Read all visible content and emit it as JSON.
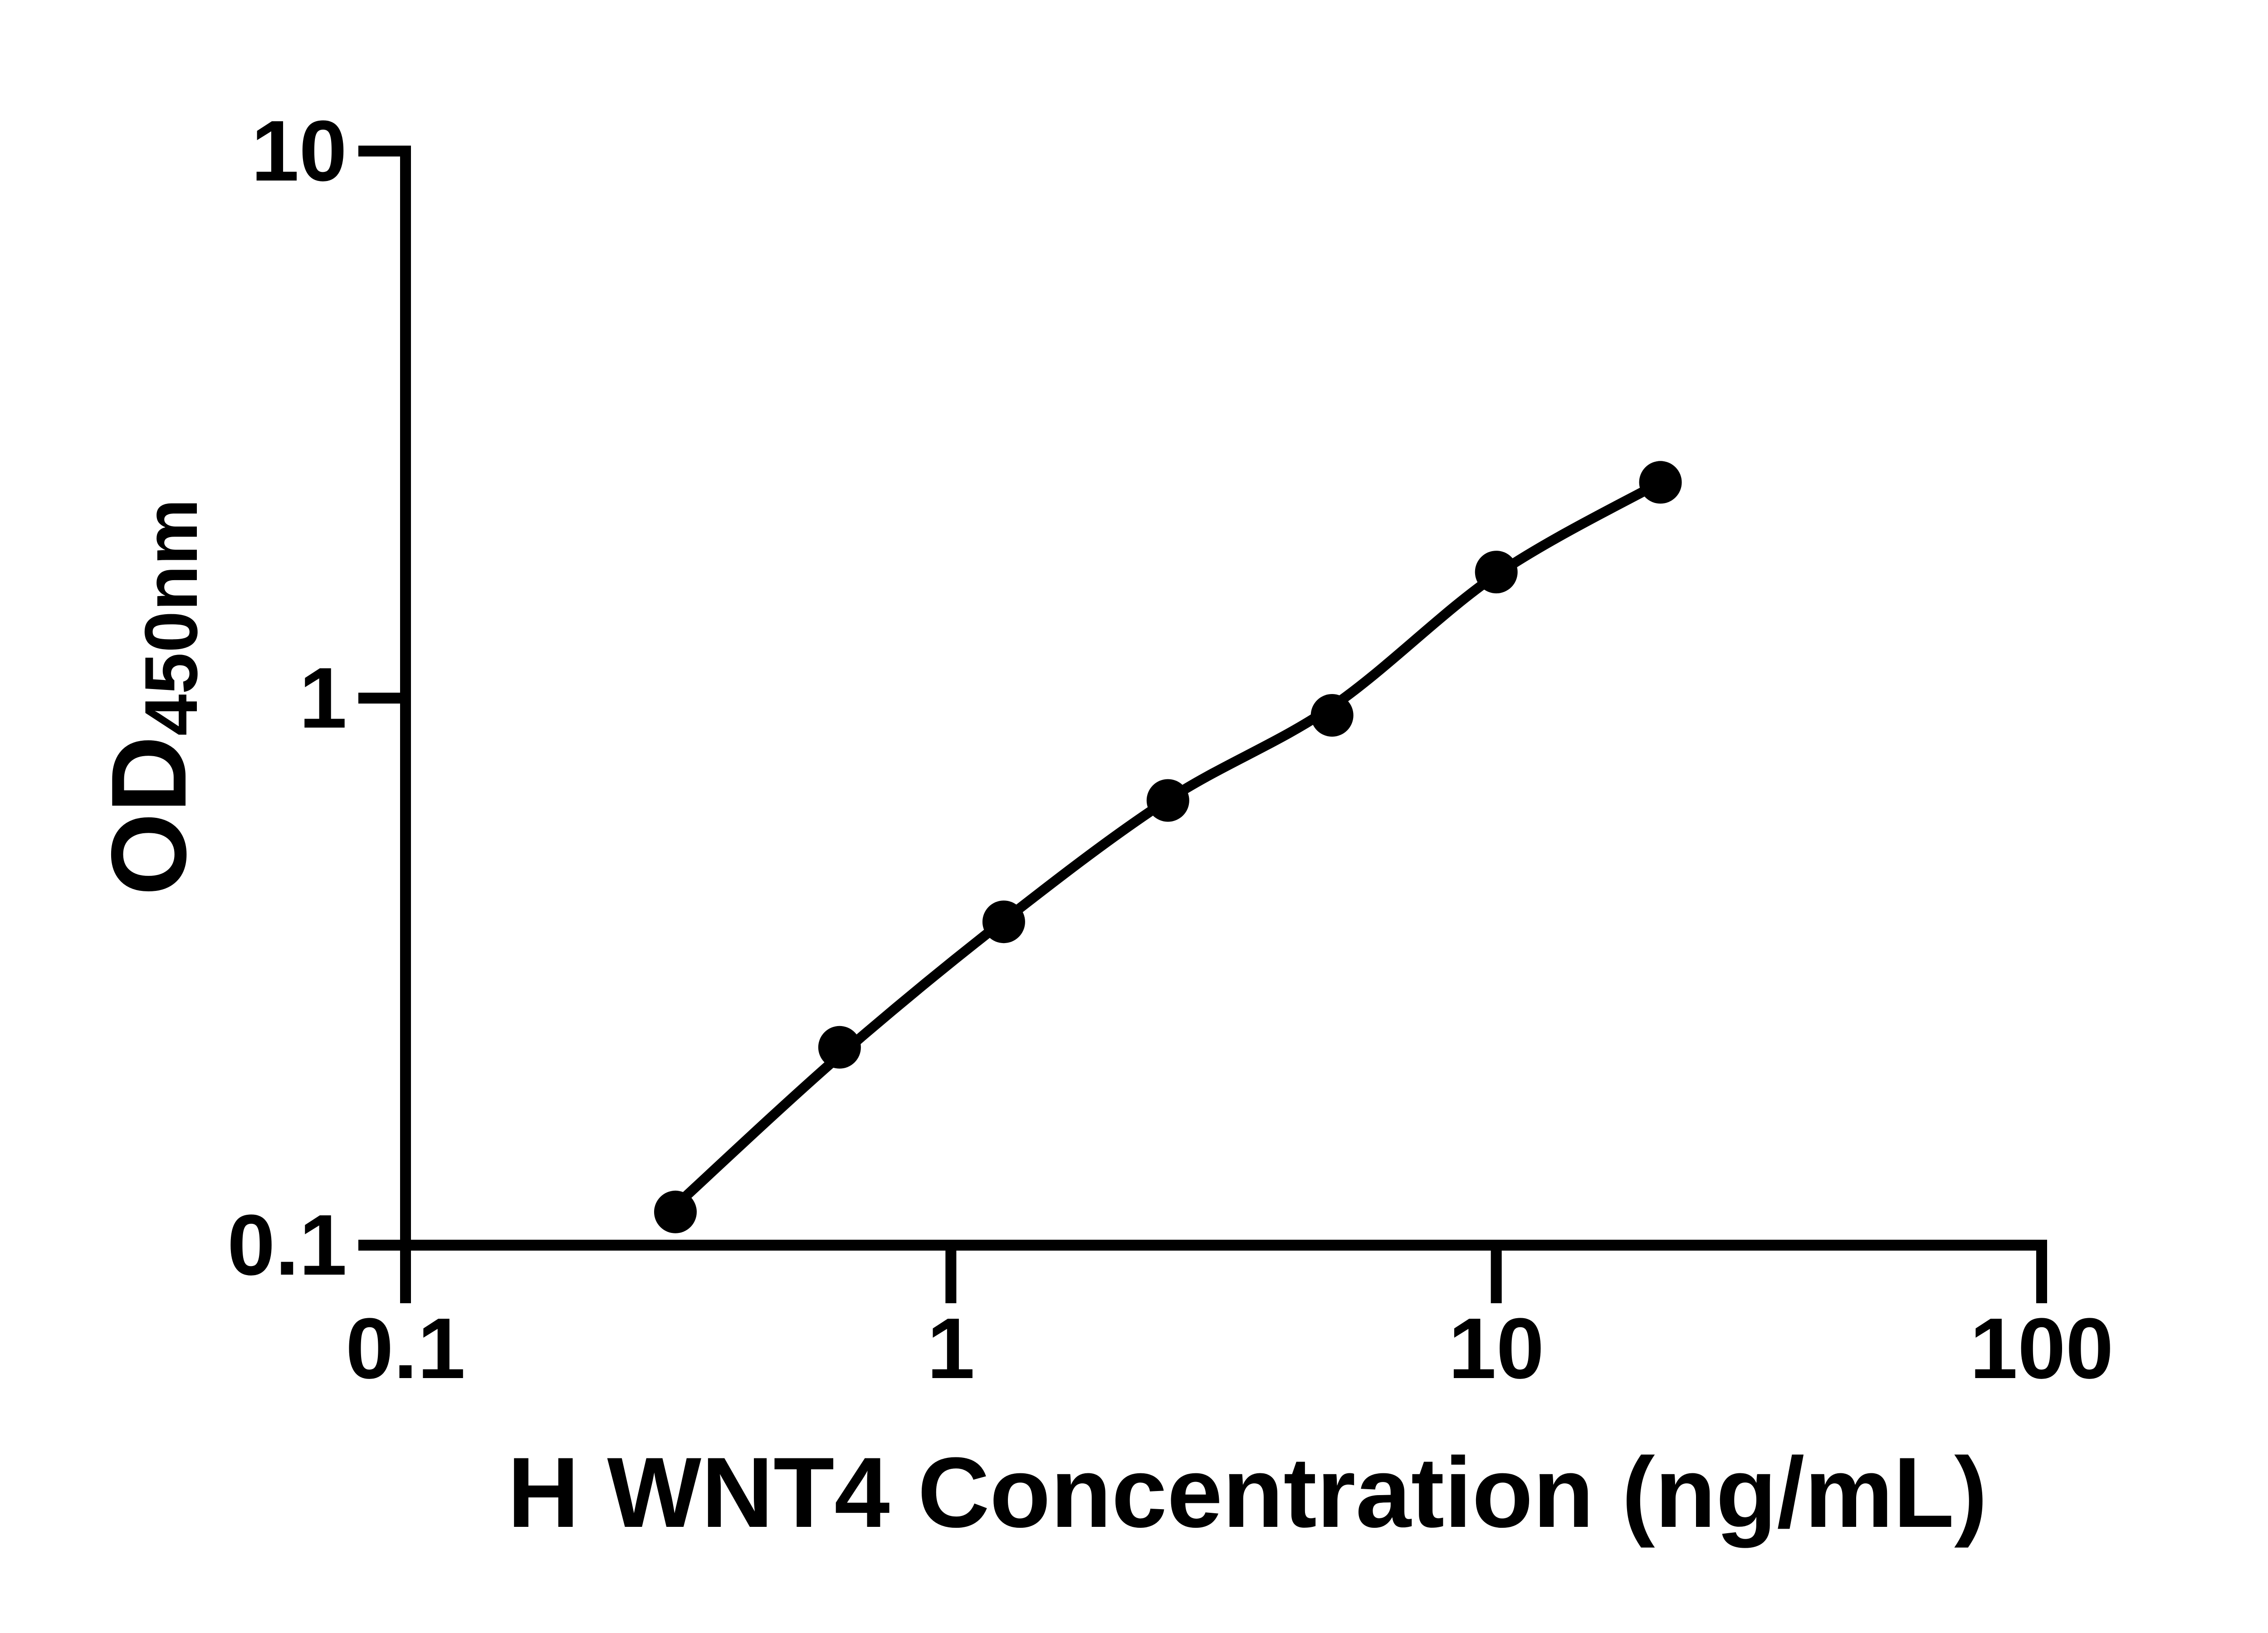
{
  "figure": {
    "background_color": "#ffffff",
    "ink_color": "#000000"
  },
  "chart_data": {
    "type": "scatter",
    "title": "",
    "xlabel": "H WNT4 Concentration (ng/mL)",
    "ylabel": "OD",
    "ylabel_subscript": "450nm",
    "x_scale": "log10",
    "y_scale": "log10",
    "xlim": [
      0.1,
      100
    ],
    "ylim": [
      0.1,
      10
    ],
    "grid": false,
    "legend": "none",
    "marker": "filled-circle",
    "marker_color": "#000000",
    "line_color": "#000000",
    "x_ticks": [
      {
        "value": 0.1,
        "label": "0.1"
      },
      {
        "value": 1,
        "label": "1"
      },
      {
        "value": 10,
        "label": "10"
      },
      {
        "value": 100,
        "label": "100"
      }
    ],
    "y_ticks": [
      {
        "value": 10,
        "label": "10"
      },
      {
        "value": 1,
        "label": "1"
      },
      {
        "value": 0.1,
        "label": "0.1"
      }
    ],
    "series": [
      {
        "name": "standard-points",
        "role": "markers",
        "x": [
          0.3125,
          0.625,
          1.25,
          2.5,
          5,
          10,
          20
        ],
        "y": [
          0.115,
          0.23,
          0.39,
          0.65,
          0.93,
          1.7,
          2.48
        ]
      },
      {
        "name": "fit-curve",
        "role": "line",
        "x": [
          0.3125,
          0.625,
          1.25,
          2.5,
          5,
          10,
          20
        ],
        "y": [
          0.118,
          0.222,
          0.392,
          0.652,
          0.965,
          1.68,
          2.48
        ]
      }
    ]
  }
}
